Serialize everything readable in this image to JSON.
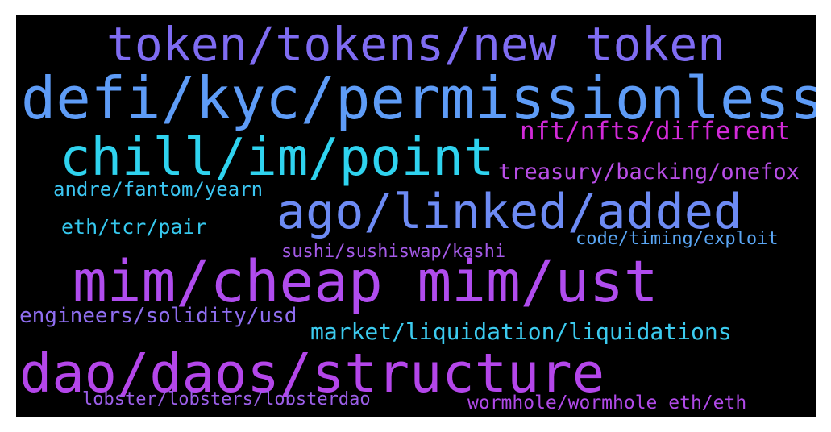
{
  "wordcloud": {
    "background": "#000000",
    "words": [
      {
        "text": "token/tokens/new token",
        "color": "#7f6cf2"
      },
      {
        "text": "defi/kyc/permissionless",
        "color": "#5e9cf7"
      },
      {
        "text": "nft/nfts/different",
        "color": "#d22ad8"
      },
      {
        "text": "chill/im/point",
        "color": "#2fd3ef"
      },
      {
        "text": "treasury/backing/onefox",
        "color": "#b84ee6"
      },
      {
        "text": "andre/fantom/yearn",
        "color": "#3cc6f2"
      },
      {
        "text": "ago/linked/added",
        "color": "#6d8bf4"
      },
      {
        "text": "eth/tcr/pair",
        "color": "#36c8ee"
      },
      {
        "text": "code/timing/exploit",
        "color": "#5aa6f4"
      },
      {
        "text": "sushi/sushiswap/kashi",
        "color": "#a45ae7"
      },
      {
        "text": "mim/cheap mim/ust",
        "color": "#b04cee"
      },
      {
        "text": "engineers/solidity/usd",
        "color": "#8f6ef0"
      },
      {
        "text": "market/liquidation/liquidations",
        "color": "#3ccbef"
      },
      {
        "text": "dao/daos/structure",
        "color": "#b446ea"
      },
      {
        "text": "lobster/lobsters/lobsterdao",
        "color": "#9c5fe9"
      },
      {
        "text": "wormhole/wormhole eth/eth",
        "color": "#b04ae8"
      }
    ]
  }
}
